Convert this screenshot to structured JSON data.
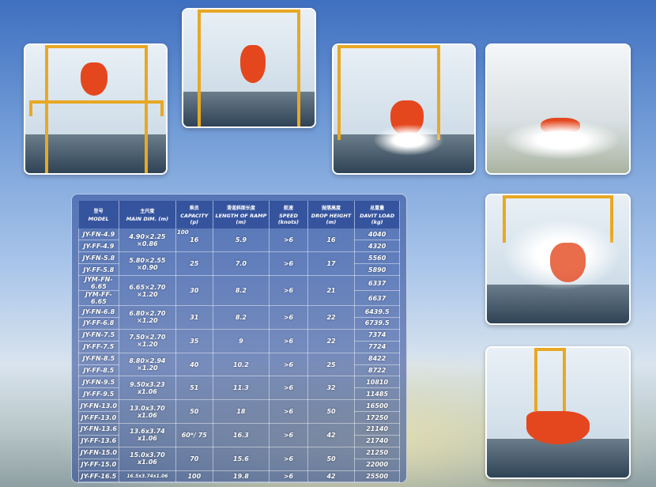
{
  "table": {
    "headers": [
      {
        "zh": "型号",
        "en": "MODEL"
      },
      {
        "zh": "主尺度",
        "en": "MAIN DIM. (m)"
      },
      {
        "zh": "乘员",
        "en": "CAPACITY (p)"
      },
      {
        "zh": "滑道斜面长度",
        "en": "LENGTH OF RAMP (m)"
      },
      {
        "zh": "航速",
        "en": "SPEED (knots)"
      },
      {
        "zh": "抛落高度",
        "en": "DROP HEIGHT (m)"
      },
      {
        "zh": "总重量",
        "en": "DAVIT LOAD (kg)"
      }
    ],
    "groups": [
      {
        "models": [
          "JY-FN-4.9",
          "JY-FF-4.9"
        ],
        "dim": "4.90×2.25 ×0.86",
        "capacity": "16",
        "capacity_note": "100",
        "ramp": "5.9",
        "speed": ">6",
        "drop": "16",
        "loads": [
          "4040",
          "4320"
        ]
      },
      {
        "models": [
          "JY-FN-5.8",
          "JY-FF-5.8"
        ],
        "dim": "5.80×2.55 ×0.90",
        "capacity": "25",
        "ramp": "7.0",
        "speed": ">6",
        "drop": "17",
        "loads": [
          "5560",
          "5890"
        ]
      },
      {
        "models": [
          "JYM-FN-6.65",
          "JYM-FF-6.65"
        ],
        "dim": "6.65×2.70 ×1.20",
        "capacity": "30",
        "ramp": "8.2",
        "speed": ">6",
        "drop": "21",
        "loads": [
          "6337",
          "6637"
        ]
      },
      {
        "models": [
          "JY-FN-6.8",
          "JY-FF-6.8"
        ],
        "dim": "6.80×2.70 ×1.20",
        "capacity": "31",
        "ramp": "8.2",
        "speed": ">6",
        "drop": "22",
        "loads": [
          "6439.5",
          "6739.5"
        ]
      },
      {
        "models": [
          "JY-FN-7.5",
          "JY-FF-7.5"
        ],
        "dim": "7.50×2.70 ×1.20",
        "capacity": "35",
        "ramp": "9",
        "speed": ">6",
        "drop": "22",
        "loads": [
          "7374",
          "7724"
        ]
      },
      {
        "models": [
          "JY-FN-8.5",
          "JY-FF-8.5"
        ],
        "dim": "8.80×2.94 ×1.20",
        "capacity": "40",
        "ramp": "10.2",
        "speed": ">6",
        "drop": "25",
        "loads": [
          "8422",
          "8722"
        ]
      },
      {
        "models": [
          "JY-FN-9.5",
          "JY-FF-9.5"
        ],
        "dim": "9.50x3.23 x1.06",
        "capacity": "51",
        "ramp": "11.3",
        "speed": ">6",
        "drop": "32",
        "loads": [
          "10810",
          "11485"
        ]
      },
      {
        "models": [
          "JY-FN-13.0",
          "JY-FF-13.0"
        ],
        "dim": "13.0x3.70 x1.06",
        "capacity": "50",
        "ramp": "18",
        "speed": ">6",
        "drop": "50",
        "loads": [
          "16500",
          "17250"
        ]
      },
      {
        "models": [
          "JY-FN-13.6",
          "JY-FF-13.6"
        ],
        "dim": "13.6x3.74 x1.06",
        "capacity": "60*/ 75",
        "ramp": "16.3",
        "speed": ">6",
        "drop": "42",
        "loads": [
          "21140",
          "21740"
        ]
      },
      {
        "models": [
          "JY-FN-15.0",
          "JY-FF-15.0"
        ],
        "dim": "15.0x3.70 x1.06",
        "capacity": "70",
        "ramp": "15.6",
        "speed": ">6",
        "drop": "50",
        "loads": [
          "21250",
          "22000"
        ]
      },
      {
        "models": [
          "JY-FF-16.5"
        ],
        "dim": "16.5x3.74x1.06",
        "capacity": "100",
        "ramp": "19.8",
        "speed": ">6",
        "drop": "42",
        "loads": [
          "25500"
        ]
      }
    ]
  },
  "colors": {
    "boat": "#e4471e",
    "frame": "#e8a824"
  }
}
